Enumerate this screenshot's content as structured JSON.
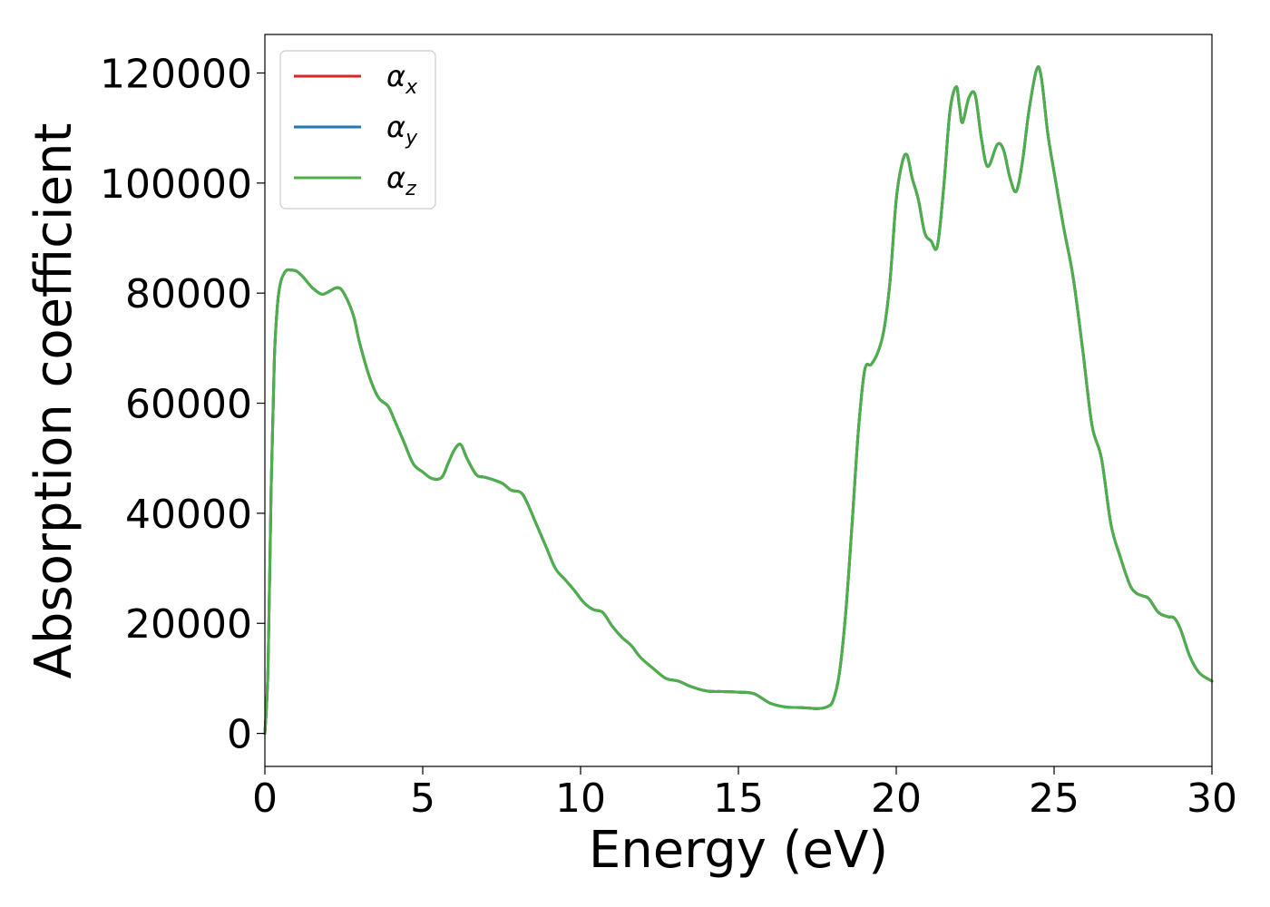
{
  "chart_data": {
    "type": "line",
    "title": "",
    "xlabel": "Energy (eV)",
    "ylabel": "Absorption coefficient",
    "xlim": [
      0,
      30
    ],
    "ylim": [
      -6000,
      127000
    ],
    "xticks": [
      0,
      5,
      10,
      15,
      20,
      25,
      30
    ],
    "yticks": [
      0,
      20000,
      40000,
      60000,
      80000,
      100000,
      120000
    ],
    "xtick_labels": [
      "0",
      "5",
      "10",
      "15",
      "20",
      "25",
      "30"
    ],
    "ytick_labels": [
      "0",
      "20000",
      "40000",
      "60000",
      "80000",
      "100000",
      "120000"
    ],
    "grid": false,
    "legend_position": "top-left",
    "x": [
      0,
      0.1,
      0.2,
      0.3,
      0.4,
      0.5,
      0.6,
      0.7,
      0.8,
      1.0,
      1.2,
      1.5,
      1.8,
      2.0,
      2.3,
      2.5,
      2.8,
      3.0,
      3.3,
      3.6,
      3.9,
      4.1,
      4.4,
      4.7,
      5.0,
      5.3,
      5.6,
      5.8,
      6.0,
      6.2,
      6.4,
      6.7,
      7.0,
      7.5,
      7.8,
      8.1,
      8.3,
      8.6,
      8.9,
      9.2,
      9.5,
      9.8,
      10.1,
      10.4,
      10.7,
      11.0,
      11.3,
      11.6,
      11.9,
      12.3,
      12.7,
      13.1,
      13.5,
      14.0,
      14.5,
      15.0,
      15.5,
      16.0,
      16.5,
      17.0,
      17.5,
      17.8,
      18.0,
      18.2,
      18.4,
      18.6,
      18.8,
      19.0,
      19.2,
      19.4,
      19.6,
      19.8,
      20.0,
      20.2,
      20.35,
      20.5,
      20.7,
      20.9,
      21.1,
      21.3,
      21.5,
      21.7,
      21.9,
      22.0,
      22.1,
      22.3,
      22.5,
      22.7,
      22.9,
      23.2,
      23.4,
      23.6,
      23.8,
      24.0,
      24.2,
      24.45,
      24.6,
      24.8,
      25.0,
      25.3,
      25.6,
      25.9,
      26.2,
      26.5,
      26.8,
      27.1,
      27.4,
      27.6,
      27.8,
      28.0,
      28.3,
      28.6,
      28.8,
      29.0,
      29.3,
      29.6,
      30.0
    ],
    "series": [
      {
        "name": "α_x",
        "color": "#d62728",
        "values": [
          0,
          12000,
          45000,
          68000,
          78000,
          82000,
          83500,
          84200,
          84200,
          84000,
          83000,
          81000,
          79800,
          80200,
          81000,
          80000,
          76000,
          71000,
          65000,
          61000,
          59500,
          57000,
          53000,
          49000,
          47500,
          46300,
          46500,
          49000,
          51500,
          52500,
          50000,
          47000,
          46500,
          45500,
          44200,
          43800,
          42000,
          38000,
          34000,
          30000,
          28000,
          26000,
          23800,
          22500,
          22000,
          19500,
          17500,
          16000,
          13800,
          11800,
          10000,
          9500,
          8500,
          7700,
          7600,
          7500,
          7200,
          5500,
          4800,
          4700,
          4500,
          4800,
          6000,
          11000,
          22000,
          38000,
          55000,
          66000,
          67000,
          69000,
          73000,
          82000,
          97000,
          104000,
          105000,
          101000,
          97000,
          91000,
          89500,
          88500,
          99000,
          113000,
          117500,
          114000,
          111000,
          115500,
          116000,
          108000,
          103000,
          107000,
          106000,
          101000,
          98500,
          104000,
          113000,
          120700,
          119000,
          109000,
          102000,
          92000,
          83000,
          70000,
          56000,
          50000,
          38000,
          32000,
          27000,
          25500,
          25000,
          24500,
          22000,
          21200,
          21000,
          19000,
          14000,
          11000,
          9500
        ]
      },
      {
        "name": "α_y",
        "color": "#1f77b4",
        "values": [
          0,
          12000,
          45000,
          68000,
          78000,
          82000,
          83500,
          84200,
          84200,
          84000,
          83000,
          81000,
          79800,
          80200,
          81000,
          80000,
          76000,
          71000,
          65000,
          61000,
          59500,
          57000,
          53000,
          49000,
          47500,
          46300,
          46500,
          49000,
          51500,
          52500,
          50000,
          47000,
          46500,
          45500,
          44200,
          43800,
          42000,
          38000,
          34000,
          30000,
          28000,
          26000,
          23800,
          22500,
          22000,
          19500,
          17500,
          16000,
          13800,
          11800,
          10000,
          9500,
          8500,
          7700,
          7600,
          7500,
          7200,
          5500,
          4800,
          4700,
          4500,
          4800,
          6000,
          11000,
          22000,
          38000,
          55000,
          66000,
          67000,
          69000,
          73000,
          82000,
          97000,
          104000,
          105000,
          101000,
          97000,
          91000,
          89500,
          88500,
          99000,
          113000,
          117500,
          114000,
          111000,
          115500,
          116000,
          108000,
          103000,
          107000,
          106000,
          101000,
          98500,
          104000,
          113000,
          120700,
          119000,
          109000,
          102000,
          92000,
          83000,
          70000,
          56000,
          50000,
          38000,
          32000,
          27000,
          25500,
          25000,
          24500,
          22000,
          21200,
          21000,
          19000,
          14000,
          11000,
          9500
        ]
      },
      {
        "name": "α_z",
        "color": "#4daf4a",
        "values": [
          0,
          12000,
          45000,
          68000,
          78000,
          82000,
          83500,
          84200,
          84200,
          84000,
          83000,
          81000,
          79800,
          80200,
          81000,
          80000,
          76000,
          71000,
          65000,
          61000,
          59500,
          57000,
          53000,
          49000,
          47500,
          46300,
          46500,
          49000,
          51500,
          52500,
          50000,
          47000,
          46500,
          45500,
          44200,
          43800,
          42000,
          38000,
          34000,
          30000,
          28000,
          26000,
          23800,
          22500,
          22000,
          19500,
          17500,
          16000,
          13800,
          11800,
          10000,
          9500,
          8500,
          7700,
          7600,
          7500,
          7200,
          5500,
          4800,
          4700,
          4500,
          4800,
          6000,
          11000,
          22000,
          38000,
          55000,
          66000,
          67000,
          69000,
          73000,
          82000,
          97000,
          104000,
          105000,
          101000,
          97000,
          91000,
          89500,
          88500,
          99000,
          113000,
          117500,
          114000,
          111000,
          115500,
          116000,
          108000,
          103000,
          107000,
          106000,
          101000,
          98500,
          104000,
          113000,
          120700,
          119000,
          109000,
          102000,
          92000,
          83000,
          70000,
          56000,
          50000,
          38000,
          32000,
          27000,
          25500,
          25000,
          24500,
          22000,
          21200,
          21000,
          19000,
          14000,
          11000,
          9500
        ]
      }
    ],
    "legend": [
      {
        "base": "α",
        "sub": "x"
      },
      {
        "base": "α",
        "sub": "y"
      },
      {
        "base": "α",
        "sub": "z"
      }
    ]
  }
}
